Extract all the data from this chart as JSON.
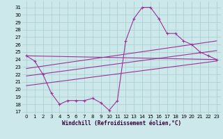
{
  "xlabel": "Windchill (Refroidissement éolien,°C)",
  "bg_color": "#cce8ea",
  "grid_color": "#a8cccc",
  "line_color": "#993399",
  "xlim": [
    -0.5,
    23.5
  ],
  "ylim": [
    16.7,
    31.8
  ],
  "yticks": [
    17,
    18,
    19,
    20,
    21,
    22,
    23,
    24,
    25,
    26,
    27,
    28,
    29,
    30,
    31
  ],
  "xticks": [
    0,
    1,
    2,
    3,
    4,
    5,
    6,
    7,
    8,
    9,
    10,
    11,
    12,
    13,
    14,
    15,
    16,
    17,
    18,
    19,
    20,
    21,
    22,
    23
  ],
  "series1_x": [
    0,
    1,
    2,
    3,
    4,
    5,
    6,
    7,
    8,
    9,
    10,
    11,
    12,
    13,
    14,
    15,
    16,
    17,
    18,
    19,
    20,
    21,
    22,
    23
  ],
  "series1_y": [
    24.5,
    23.8,
    22.0,
    19.5,
    18.0,
    18.5,
    18.5,
    18.5,
    18.8,
    18.2,
    17.2,
    18.5,
    26.5,
    29.5,
    31.0,
    31.0,
    29.5,
    27.5,
    27.5,
    26.5,
    26.0,
    25.0,
    24.5,
    24.0
  ],
  "series2_x": [
    0,
    23
  ],
  "series2_y": [
    24.5,
    24.0
  ],
  "series3_x": [
    0,
    23
  ],
  "series3_y": [
    22.8,
    26.5
  ],
  "series4_x": [
    0,
    23
  ],
  "series4_y": [
    21.8,
    25.2
  ],
  "series5_x": [
    0,
    23
  ],
  "series5_y": [
    20.5,
    23.8
  ]
}
